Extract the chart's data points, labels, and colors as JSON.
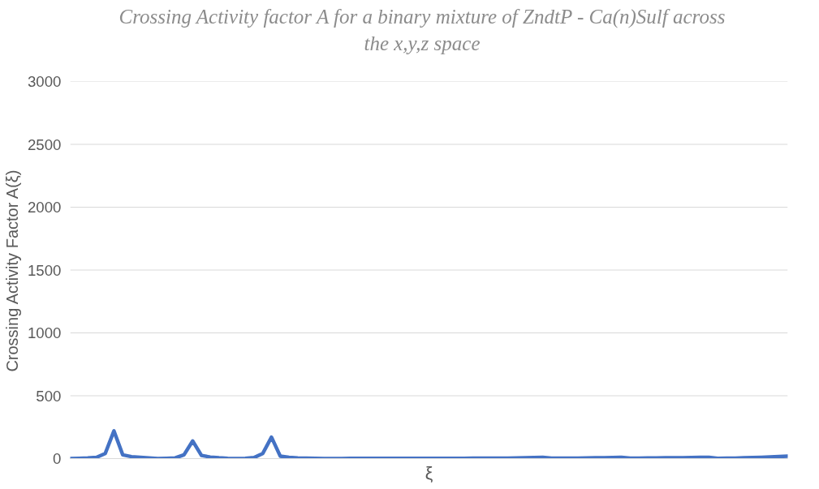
{
  "chart_data": {
    "type": "line",
    "title": "Crossing Activity factor A for a binary mixture of ZndtP - Ca(n)Sulf across the x,y,z space",
    "xlabel": "ξ",
    "ylabel": "Crossing Activity Factor A(ξ)",
    "categories": [
      null,
      null,
      null,
      null,
      null,
      null,
      null,
      null,
      null,
      null,
      null,
      null,
      null,
      null,
      null,
      null,
      null,
      null,
      null,
      null,
      null,
      null,
      null,
      null,
      null,
      null,
      null,
      null,
      null,
      null,
      null,
      null,
      null,
      null,
      null,
      null,
      null,
      null,
      null,
      null,
      null,
      null,
      null,
      null,
      null,
      null,
      null,
      null,
      null,
      null,
      null,
      null,
      null,
      null,
      null,
      null,
      null,
      null,
      null,
      null,
      null,
      null,
      null,
      null,
      null,
      null,
      null,
      null,
      null,
      null,
      null,
      null,
      null,
      null,
      null,
      null,
      null,
      null,
      null,
      null,
      null,
      null,
      null
    ],
    "series": [
      {
        "color": "#4472c4",
        "values": [
          0,
          2,
          5,
          10,
          40,
          220,
          30,
          15,
          10,
          5,
          0,
          2,
          5,
          30,
          140,
          25,
          12,
          6,
          2,
          0,
          2,
          8,
          40,
          170,
          20,
          10,
          5,
          3,
          2,
          0,
          0,
          0,
          1,
          1,
          1,
          1,
          2,
          2,
          2,
          2,
          2,
          1,
          1,
          1,
          2,
          2,
          3,
          3,
          3,
          4,
          4,
          5,
          6,
          8,
          10,
          3,
          3,
          4,
          4,
          5,
          6,
          7,
          8,
          10,
          4,
          4,
          5,
          5,
          6,
          6,
          7,
          8,
          9,
          10,
          2,
          3,
          4,
          6,
          8,
          10,
          13,
          16,
          20
        ]
      }
    ],
    "ylim": [
      0,
      3000
    ],
    "yticks": [
      0,
      500,
      1000,
      1500,
      2000,
      2500,
      3000
    ],
    "grid": "y",
    "tick_labels": "y",
    "marker": "none",
    "line_style": "solid"
  }
}
